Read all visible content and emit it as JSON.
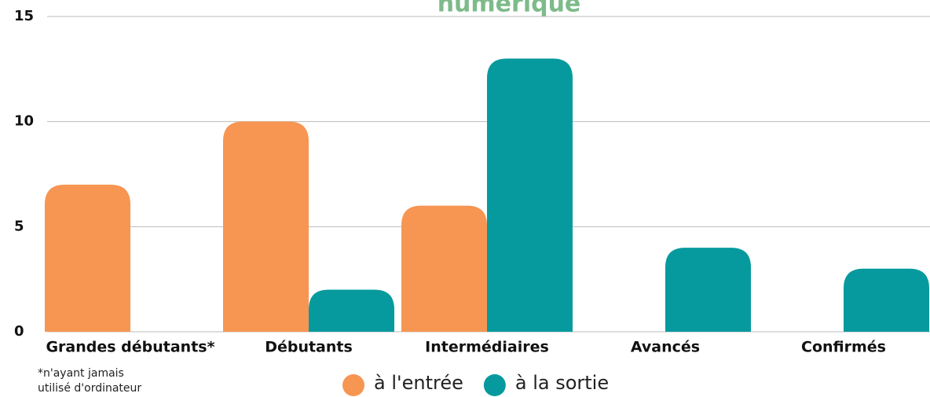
{
  "chart_data": {
    "type": "bar",
    "title": "numérique",
    "categories": [
      "Grandes débutants*",
      "Débutants",
      "Intermédiaires",
      "Avancés",
      "Confirmés"
    ],
    "series": [
      {
        "name": "à l'entrée",
        "color": "#f79552",
        "values": [
          7,
          10,
          6,
          0,
          0
        ]
      },
      {
        "name": "à la sortie",
        "color": "#069a9e",
        "values": [
          0,
          2,
          13,
          4,
          3
        ]
      }
    ],
    "ylim": [
      0,
      15
    ],
    "yticks": [
      0,
      5,
      10,
      15
    ],
    "grid": true,
    "note": [
      "*n'ayant jamais",
      "utilisé d'ordinateur"
    ]
  }
}
